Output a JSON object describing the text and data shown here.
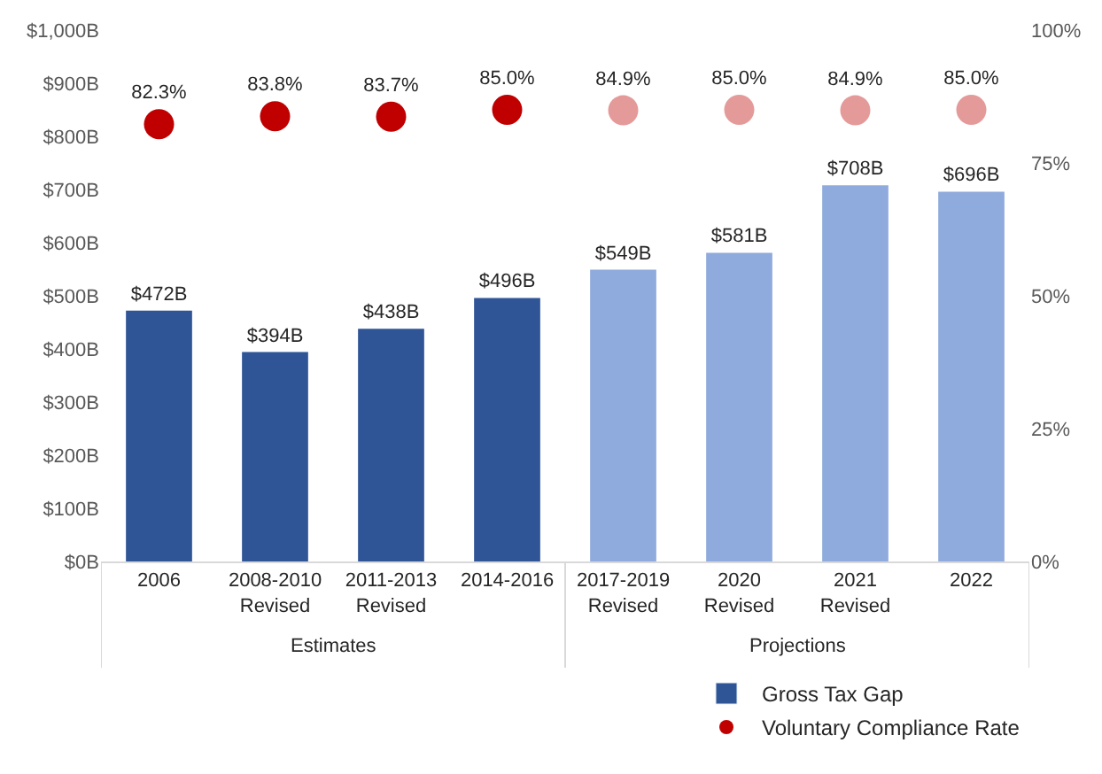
{
  "chart_data": {
    "type": "bar",
    "categories": [
      "2006",
      "2008-2010 Revised",
      "2011-2013 Revised",
      "2014-2016",
      "2017-2019 Revised",
      "2020 Revised",
      "2021 Revised",
      "2022"
    ],
    "series": [
      {
        "name": "Gross Tax Gap",
        "color": "#2f5597",
        "colors": [
          "#2f5597",
          "#2f5597",
          "#2f5597",
          "#2f5597",
          "#8faadc",
          "#8faadc",
          "#8faadc",
          "#8faadc"
        ],
        "values": [
          472,
          394,
          438,
          496,
          549,
          581,
          708,
          696
        ],
        "value_labels": [
          "$472B",
          "$394B",
          "$438B",
          "$496B",
          "$549B",
          "$581B",
          "$708B",
          "$696B"
        ]
      },
      {
        "name": "Voluntary Compliance Rate",
        "type": "scatter",
        "axis": "y2",
        "marker": "circle",
        "color": "#c00000",
        "colors": [
          "#c00000",
          "#c00000",
          "#c00000",
          "#c00000",
          "#e59a9a",
          "#e59a9a",
          "#e59a9a",
          "#e59a9a"
        ],
        "values": [
          82.3,
          83.8,
          83.7,
          85.0,
          84.9,
          85.0,
          84.9,
          85.0
        ],
        "value_labels": [
          "82.3%",
          "83.8%",
          "83.7%",
          "85.0%",
          "84.9%",
          "85.0%",
          "84.9%",
          "85.0%"
        ]
      }
    ],
    "ylim": [
      0,
      1000
    ],
    "yticks": [
      {
        "value": 0,
        "label": "$0B"
      },
      {
        "value": 100,
        "label": "$100B"
      },
      {
        "value": 200,
        "label": "$200B"
      },
      {
        "value": 300,
        "label": "$300B"
      },
      {
        "value": 400,
        "label": "$400B"
      },
      {
        "value": 500,
        "label": "$500B"
      },
      {
        "value": 600,
        "label": "$600B"
      },
      {
        "value": 700,
        "label": "$700B"
      },
      {
        "value": 800,
        "label": "$800B"
      },
      {
        "value": 900,
        "label": "$900B"
      },
      {
        "value": 1000,
        "label": "$1,000B"
      }
    ],
    "y2lim": [
      0,
      100
    ],
    "y2ticks": [
      {
        "value": 0,
        "label": "0%"
      },
      {
        "value": 25,
        "label": "25%"
      },
      {
        "value": 50,
        "label": "50%"
      },
      {
        "value": 75,
        "label": "75%"
      },
      {
        "value": 100,
        "label": "100%"
      }
    ],
    "annotations": [
      "Estimates",
      "Projections"
    ],
    "legend": "bottom right"
  }
}
